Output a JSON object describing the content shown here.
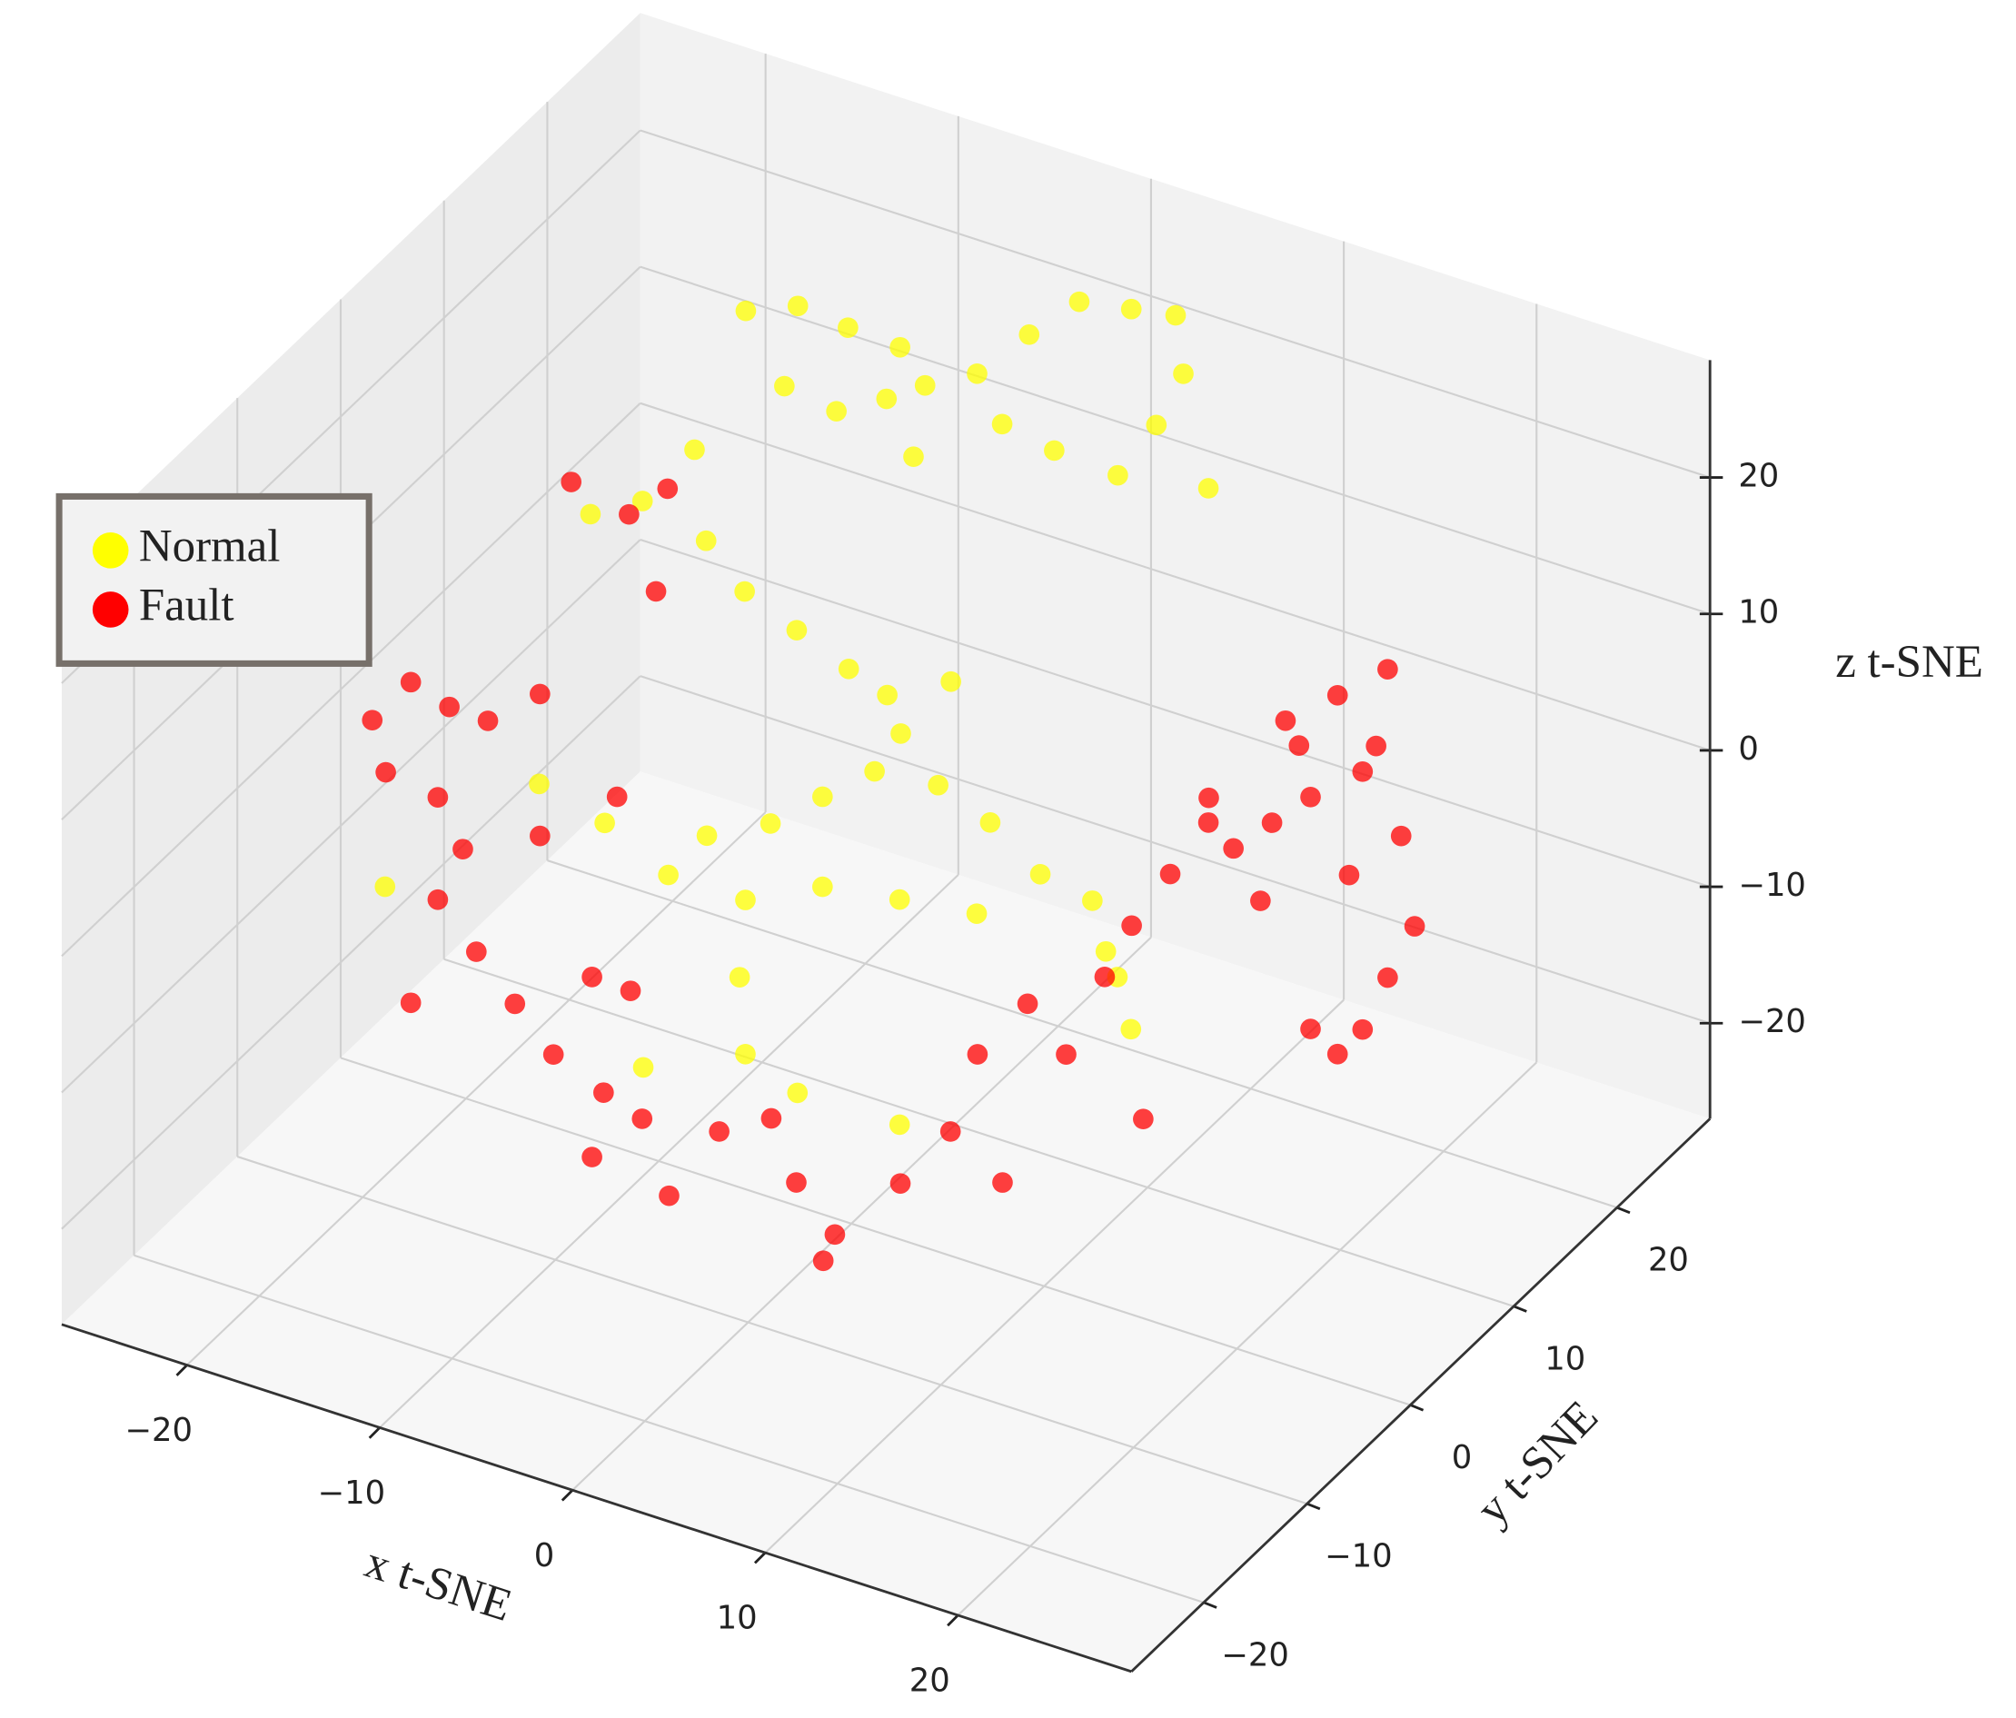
{
  "chart_data": {
    "type": "scatter3d",
    "xlabel": "x t-SNE",
    "ylabel": "y t-SNE",
    "zlabel": "z t-SNE",
    "xlim": [
      -26.5,
      29
    ],
    "ylim": [
      -27,
      29
    ],
    "zlim": [
      -27,
      28.6
    ],
    "xticks": [
      {
        "value": -20,
        "label": "−20"
      },
      {
        "value": -10,
        "label": "−10"
      },
      0,
      10,
      20
    ],
    "yticks": [
      {
        "value": -20,
        "label": "−20"
      },
      {
        "value": -10,
        "label": "−10"
      },
      0,
      10,
      20
    ],
    "zticks": [
      {
        "value": -20,
        "label": "−20"
      },
      {
        "value": -10,
        "label": "−10"
      },
      0,
      10,
      20
    ],
    "grid": true,
    "legend": "left",
    "series": [
      {
        "name": "Normal",
        "color": "#ffff00",
        "x": [
          -16.2,
          -13.5,
          -10.9,
          -8.2,
          -14.2,
          -11.5,
          -8.9,
          -6.9,
          -4.2,
          -1.5,
          1.1,
          3.8,
          6.1,
          6.5,
          5.1,
          3.1,
          7.8,
          -2.9,
          -7.5,
          -0.2,
          -13.5,
          -16.2,
          -18.9,
          -12.9,
          -10.9,
          -8.2,
          -5.5,
          -3.5,
          -2.8,
          -0.2,
          -7.5,
          -4.2,
          -1.5,
          1.2,
          4.5,
          7.2,
          9.8,
          12.5,
          13.2,
          -9.5,
          -5.5,
          -1.5,
          2.5,
          6.5,
          -12.8,
          -16.2,
          -24.2,
          -5.8,
          -5.5,
          -2.8,
          2.5,
          14.5,
          -10.8,
          13.8
        ],
        "y": [
          20,
          20,
          20,
          20,
          20,
          20,
          20,
          20,
          20,
          20,
          20,
          20,
          20,
          20,
          20,
          20,
          20,
          20,
          20,
          20,
          10,
          10,
          10,
          10,
          10,
          10,
          10,
          10,
          10,
          10,
          0,
          0,
          0,
          0,
          0,
          0,
          0,
          0,
          0,
          0,
          0,
          0,
          0,
          0,
          0,
          0,
          0,
          0,
          0,
          0,
          0,
          0,
          0,
          0
        ],
        "z": [
          18.0,
          19.6,
          19.2,
          19.0,
          13.4,
          12.8,
          14.9,
          16.8,
          18.9,
          23.0,
          26.6,
          27.3,
          27.9,
          23.8,
          19.4,
          14.8,
          16.0,
          15.8,
          11.3,
          15.1,
          16.3,
          11.3,
          9.1,
          9.9,
          7.1,
          5.5,
          3.9,
          2.9,
          0.4,
          5.4,
          -2.0,
          0.4,
          3.6,
          6.7,
          7.2,
          5.7,
          3.1,
          2.4,
          -1.0,
          -5.8,
          -5.8,
          -3.0,
          -2.1,
          -1.3,
          -3.5,
          -2.2,
          -13.4,
          -11.6,
          -17.1,
          -18.7,
          -18.6,
          -6.1,
          -20.5,
          -2.6
        ]
      },
      {
        "name": "Fault",
        "color": "#ff0000",
        "x": [
          -19.5,
          -17.5,
          -15.5,
          -18.8,
          -16.1,
          -13.5,
          -10.8,
          -14.8,
          -16.1,
          -14.1,
          -17.5,
          -12.1,
          -10.1,
          -7.5,
          -5.5,
          -8.1,
          -4.1,
          -1.5,
          1.2,
          2.5,
          4.5,
          3.9,
          7.9,
          10.5,
          13.2,
          11.9,
          14.5,
          16.5,
          18.5,
          20.5,
          19.9,
          21.9,
          23.9,
          -8.1,
          -6.1,
          -10.8,
          -6.8,
          -19.9,
          -16.9,
          -14.9,
          -15.5,
          11.8,
          14.5,
          17.1,
          15.8,
          13.1,
          17.8,
          15.1,
          18.5,
          17.1,
          15.8,
          14.5,
          13.1,
          10.5,
          9.1,
          7.8,
          16.5,
          12.5,
          11.1
        ],
        "y": [
          -10,
          -10,
          -10,
          -10,
          -10,
          -10,
          -10,
          -10,
          -10,
          -10,
          -10,
          -10,
          -10,
          -10,
          -10,
          -10,
          -10,
          -10,
          -10,
          -10,
          -10,
          -10,
          -10,
          -10,
          -10,
          -10,
          -10,
          -10,
          -10,
          -10,
          -10,
          -10,
          -10,
          -10,
          -10,
          -10,
          -10,
          10,
          10,
          10,
          10,
          20,
          20,
          20,
          20,
          20,
          20,
          20,
          20,
          20,
          20,
          20,
          20,
          20,
          20,
          20,
          20,
          20,
          20
        ],
        "z": [
          8.2,
          11.9,
          11.0,
          4.7,
          4.1,
          10.9,
          14.1,
          0.9,
          -3.4,
          -6.3,
          -11.6,
          -9.2,
          -12.0,
          -13.6,
          -14.6,
          -18.6,
          -19.6,
          -13.7,
          -11.5,
          -15.6,
          -18.5,
          -20.7,
          -13.2,
          -8.2,
          -10.7,
          -1.9,
          3.0,
          0.2,
          6.8,
          -2.7,
          11.2,
          15.9,
          22.4,
          -5.4,
          -5.5,
          3.7,
          8.4,
          11.0,
          10.0,
          12.8,
          5.0,
          0.8,
          3.9,
          7.0,
          -1.1,
          -4.2,
          -4.9,
          -9.0,
          -11.2,
          -15.6,
          -20.0,
          -22.4,
          -21.2,
          -13.0,
          -9.8,
          -8.5,
          1.1,
          -0.7,
          -7.0
        ]
      }
    ]
  }
}
